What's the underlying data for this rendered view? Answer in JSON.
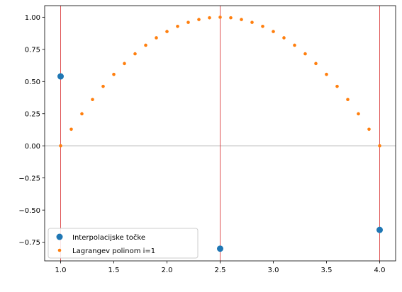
{
  "chart_data": {
    "type": "scatter",
    "xlim": [
      0.85,
      4.15
    ],
    "ylim": [
      -0.895,
      1.09
    ],
    "x_ticks": [
      1.0,
      1.5,
      2.0,
      2.5,
      3.0,
      3.5,
      4.0
    ],
    "x_tick_labels": [
      "1.0",
      "1.5",
      "2.0",
      "2.5",
      "3.0",
      "3.5",
      "4.0"
    ],
    "y_ticks": [
      1.0,
      0.75,
      0.5,
      0.25,
      0.0,
      -0.25,
      -0.5,
      -0.75
    ],
    "y_tick_labels": [
      "1.00",
      "0.75",
      "0.50",
      "0.25",
      "0.00",
      "−0.25",
      "−0.50",
      "−0.75"
    ],
    "grid": false,
    "legend_position": "lower-left",
    "vertical_lines_x": [
      1.0,
      2.5,
      4.0
    ],
    "vertical_line_color": "#d62728",
    "horizontal_line_y": 0.0,
    "horizontal_line_color": "#c0c0c0",
    "series": [
      {
        "name": "Interpolacijske točke",
        "color": "#1f77b4",
        "marker": "large-dot",
        "x": [
          1.0,
          2.5,
          4.0
        ],
        "y": [
          0.54,
          -0.8,
          -0.654
        ]
      },
      {
        "name": "Lagrangev polinom i=1",
        "color": "#ff7f0e",
        "marker": "small-dot",
        "x": [
          1.0,
          1.1,
          1.2,
          1.3,
          1.4,
          1.5,
          1.6,
          1.7,
          1.8,
          1.9,
          2.0,
          2.1,
          2.2,
          2.3,
          2.4,
          2.5,
          2.6,
          2.7,
          2.8,
          2.9,
          3.0,
          3.1,
          3.2,
          3.3,
          3.4,
          3.5,
          3.6,
          3.7,
          3.8,
          3.9,
          4.0
        ],
        "y": [
          0.0,
          0.1289,
          0.2489,
          0.36,
          0.4622,
          0.5556,
          0.64,
          0.7156,
          0.7822,
          0.84,
          0.8889,
          0.9289,
          0.96,
          0.9822,
          0.9956,
          1.0,
          0.9956,
          0.9822,
          0.96,
          0.9289,
          0.8889,
          0.84,
          0.7822,
          0.7156,
          0.64,
          0.5556,
          0.4622,
          0.36,
          0.2489,
          0.1289,
          0.0
        ]
      }
    ]
  }
}
